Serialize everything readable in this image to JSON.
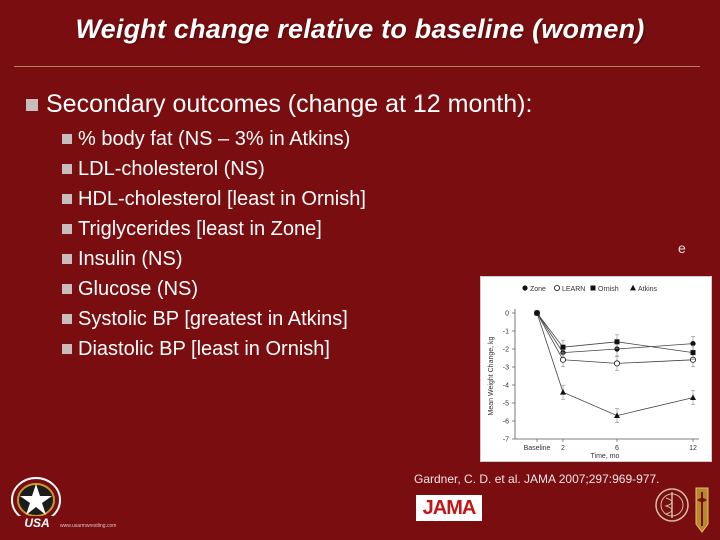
{
  "slide": {
    "title": "Weight change relative to baseline (women)",
    "main_bullet": "Secondary outcomes (change at 12 month):",
    "sub_bullets": [
      "% body fat (NS – 3% in Atkins)",
      "LDL-cholesterol (NS)",
      "HDL-cholesterol [least in Ornish]",
      "Triglycerides [least in Zone]",
      "Insulin (NS)",
      "Glucose (NS)",
      "Systolic BP [greatest in Atkins]",
      "Diastolic BP [least in Ornish]"
    ],
    "stray_char": "e",
    "citation": "Gardner, C. D. et al. JAMA 2007;297:969-977.",
    "jama_logo_text": "JAMA",
    "usa_logo_text": "USA",
    "usa_small_text": "www.usarmwrestling.com"
  },
  "colors": {
    "background": "#7a0d0f",
    "text": "#ffffff",
    "bullet": "#c8bcbc",
    "jama_red": "#c21717"
  },
  "chart_data": {
    "type": "line",
    "xlabel": "Time, mo",
    "ylabel": "Mean Weight Change, kg",
    "x_tick_labels": [
      "Baseline",
      "2",
      "6",
      "12"
    ],
    "x": [
      0,
      2,
      6,
      12
    ],
    "ylim": [
      -7,
      0
    ],
    "y_ticks": [
      0,
      -1,
      -2,
      -3,
      -4,
      -5,
      -6,
      -7
    ],
    "legend_position": "top",
    "series": [
      {
        "name": "Zone",
        "marker": "circle-filled",
        "values": [
          0,
          -2.2,
          -2.0,
          -1.7
        ]
      },
      {
        "name": "LEARN",
        "marker": "circle-open",
        "values": [
          0,
          -2.6,
          -2.8,
          -2.6
        ]
      },
      {
        "name": "Ornish",
        "marker": "square-filled",
        "values": [
          0,
          -1.9,
          -1.6,
          -2.2
        ]
      },
      {
        "name": "Atkins",
        "marker": "triangle-filled",
        "values": [
          0,
          -4.4,
          -5.7,
          -4.7
        ]
      }
    ]
  }
}
